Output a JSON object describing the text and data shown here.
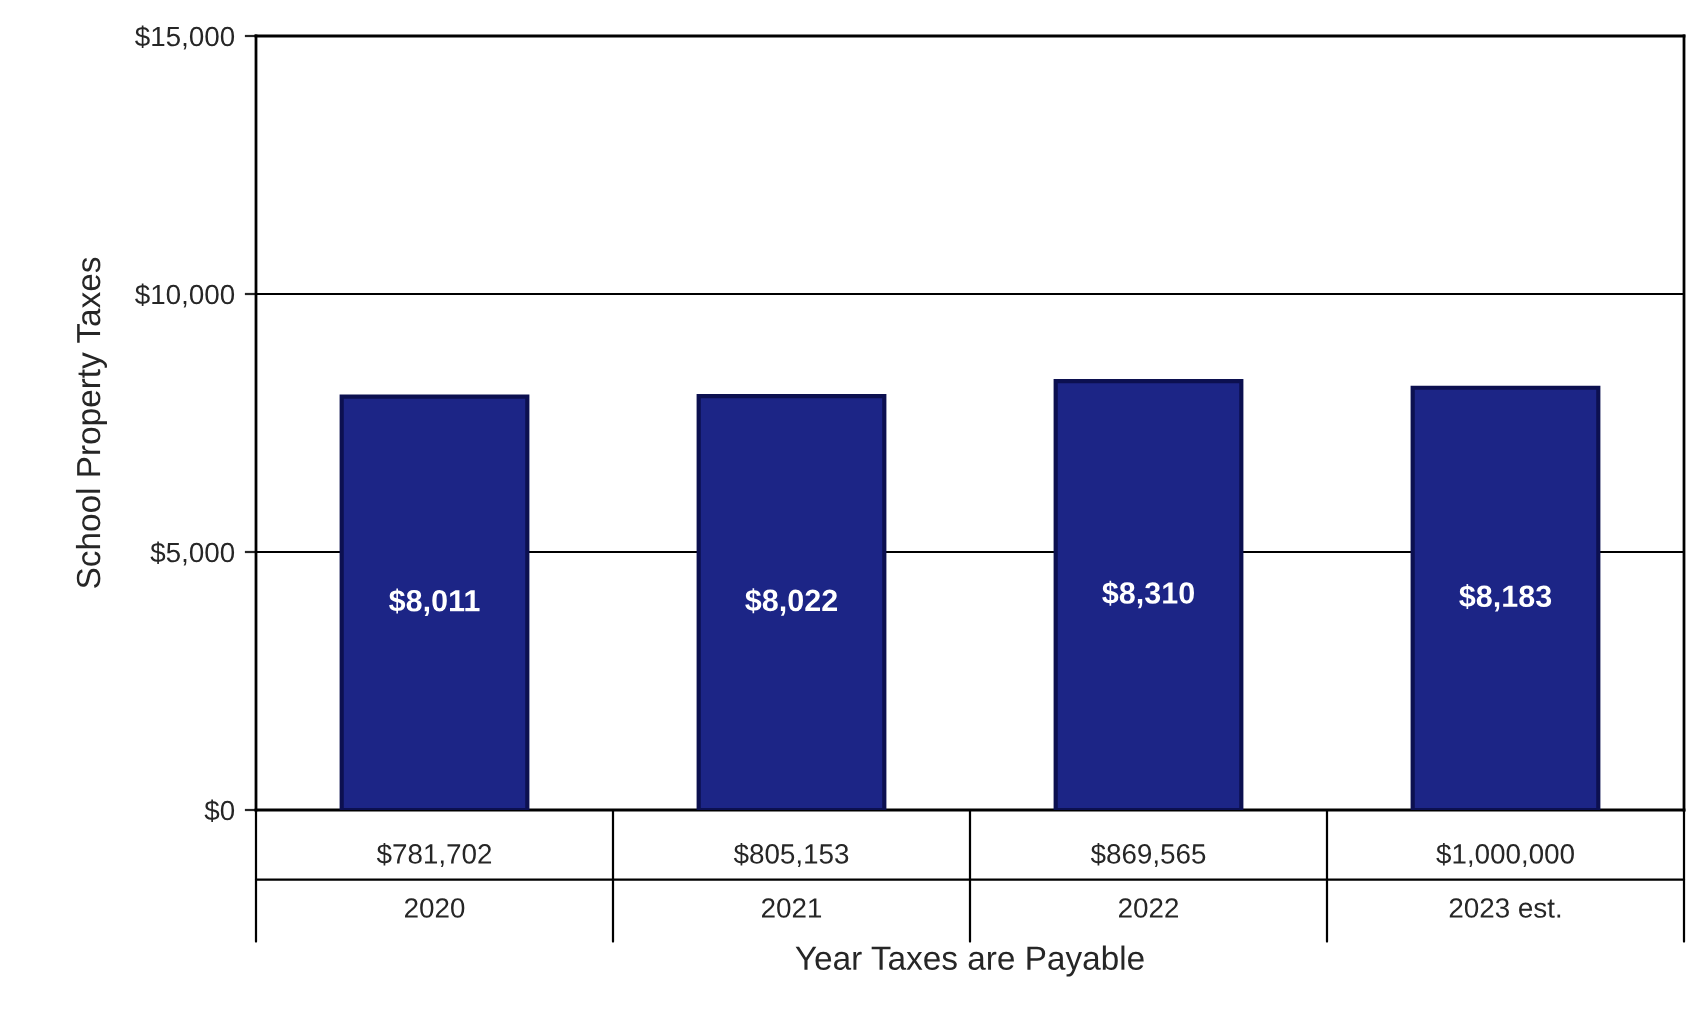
{
  "chart_data": {
    "type": "bar",
    "xlabel": "Year Taxes are Payable",
    "ylabel": "School Property Taxes",
    "categories": [
      "$781,702\n2020",
      "$805,153\n2021",
      "$869,565\n2022",
      "$1,000,000\n2023 est."
    ],
    "values": [
      8011,
      8022,
      8310,
      8183
    ],
    "value_labels": [
      "$8,011",
      "$8,022",
      "$8,310",
      "$8,183"
    ],
    "color": "#1c2586",
    "ylim": [
      0,
      15000
    ],
    "yticks": [
      {
        "value": 0,
        "label": "$0"
      },
      {
        "value": 5000,
        "label": "$5,000"
      },
      {
        "value": 10000,
        "label": "$10,000"
      },
      {
        "value": 15000,
        "label": "$15,000"
      }
    ],
    "grid": "y",
    "legend": false
  }
}
